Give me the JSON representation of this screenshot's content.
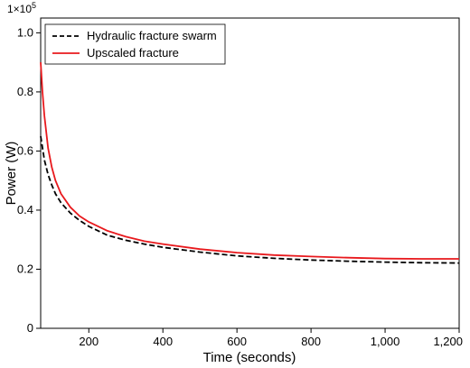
{
  "chart_data": {
    "type": "line",
    "xlabel": "Time (seconds)",
    "ylabel": "Power (W)",
    "y_multiplier_base": "1×10",
    "y_multiplier_exp": "5",
    "xlim": [
      70,
      1200
    ],
    "ylim": [
      0,
      1.05
    ],
    "x_ticks": [
      200,
      400,
      600,
      800,
      1000,
      1200
    ],
    "x_tick_labels": [
      "200",
      "400",
      "600",
      "800",
      "1,000",
      "1,200"
    ],
    "y_ticks": [
      0,
      0.2,
      0.4,
      0.6,
      0.8,
      1.0
    ],
    "y_tick_labels": [
      "0",
      "0.2",
      "0.4",
      "0.6",
      "0.8",
      "1.0"
    ],
    "legend_position": "top-left",
    "grid": false,
    "series": [
      {
        "name": "Hydraulic fracture swarm",
        "color": "#000000",
        "dash": true,
        "x": [
          70,
          80,
          90,
          100,
          110,
          125,
          150,
          175,
          200,
          250,
          300,
          350,
          400,
          500,
          600,
          700,
          800,
          900,
          1000,
          1100,
          1200
        ],
        "y": [
          0.65,
          0.57,
          0.52,
          0.485,
          0.455,
          0.425,
          0.39,
          0.365,
          0.345,
          0.315,
          0.298,
          0.285,
          0.274,
          0.258,
          0.245,
          0.237,
          0.231,
          0.227,
          0.224,
          0.222,
          0.221
        ]
      },
      {
        "name": "Upscaled fracture",
        "color": "#e8191d",
        "dash": false,
        "x": [
          70,
          75,
          80,
          90,
          100,
          110,
          125,
          150,
          175,
          200,
          250,
          300,
          350,
          400,
          500,
          600,
          700,
          800,
          900,
          1000,
          1100,
          1200
        ],
        "y": [
          0.9,
          0.8,
          0.72,
          0.61,
          0.545,
          0.5,
          0.455,
          0.41,
          0.38,
          0.36,
          0.33,
          0.31,
          0.295,
          0.285,
          0.268,
          0.256,
          0.248,
          0.243,
          0.239,
          0.236,
          0.235,
          0.235
        ]
      }
    ]
  }
}
